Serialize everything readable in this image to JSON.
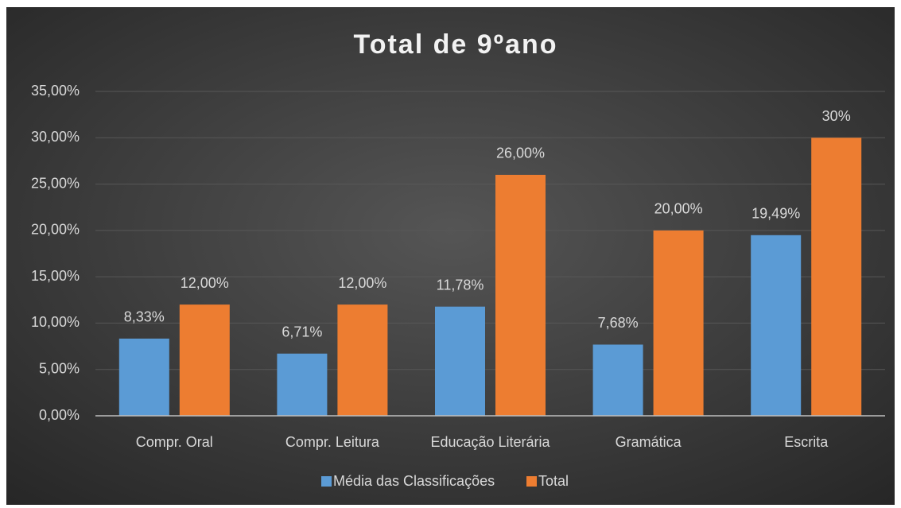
{
  "chart_data": {
    "type": "bar",
    "title": "Total de 9ºano",
    "categories": [
      "Compr. Oral",
      "Compr. Leitura",
      "Educação Literária",
      "Gramática",
      "Escrita"
    ],
    "series": [
      {
        "name": "Média das Classificações",
        "color": "#5b9bd5",
        "values": [
          8.33,
          6.71,
          11.78,
          7.68,
          19.49
        ],
        "value_labels": [
          "8,33%",
          "6,71%",
          "11,78%",
          "7,68%",
          "19,49%"
        ]
      },
      {
        "name": "Total",
        "color": "#ed7d31",
        "values": [
          12,
          12,
          26,
          20,
          30
        ],
        "value_labels": [
          "12,00%",
          "12,00%",
          "26,00%",
          "20,00%",
          "30%"
        ]
      }
    ],
    "ylim": [
      0,
      35
    ],
    "yticks": [
      {
        "value": 0,
        "label": "0,00%"
      },
      {
        "value": 5,
        "label": "5,00%"
      },
      {
        "value": 10,
        "label": "10,00%"
      },
      {
        "value": 15,
        "label": "15,00%"
      },
      {
        "value": 20,
        "label": "20,00%"
      },
      {
        "value": 25,
        "label": "25,00%"
      },
      {
        "value": 30,
        "label": "30,00%"
      },
      {
        "value": 35,
        "label": "35,00%"
      }
    ],
    "grid": true,
    "legend": "bottom"
  }
}
